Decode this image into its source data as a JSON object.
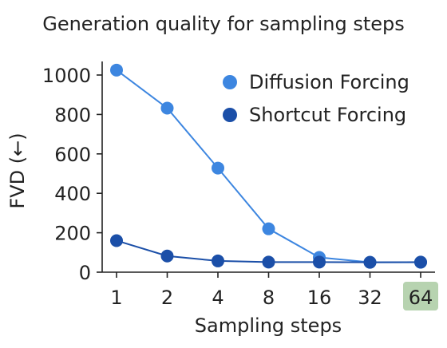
{
  "chart_data": {
    "type": "line",
    "title": "Generation quality for sampling steps",
    "xlabel": "Sampling steps",
    "ylabel": "FVD (←)",
    "categories": [
      "1",
      "2",
      "4",
      "8",
      "16",
      "32",
      "64"
    ],
    "highlighted_category": "64",
    "highlight_color": "#b7d3b0",
    "yticks": [
      "0",
      "200",
      "400",
      "600",
      "800",
      "1000"
    ],
    "ylim": [
      0,
      1030
    ],
    "grid": false,
    "legend_position": "top-right",
    "series": [
      {
        "name": "Diffusion Forcing",
        "color": "#3d86e0",
        "values": [
          1025,
          832,
          528,
          220,
          75,
          50,
          50
        ]
      },
      {
        "name": "Shortcut Forcing",
        "color": "#1b4fa8",
        "values": [
          160,
          82,
          57,
          51,
          51,
          50,
          51
        ]
      }
    ]
  }
}
